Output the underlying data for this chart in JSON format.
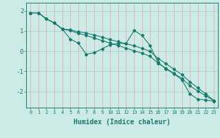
{
  "xlabel": "Humidex (Indice chaleur)",
  "background_color": "#cceae6",
  "vgrid_color": "#e8a0a0",
  "hgrid_color": "#a8d0cc",
  "line_color": "#1a7a6e",
  "x_data": [
    0,
    1,
    2,
    3,
    4,
    5,
    6,
    7,
    8,
    9,
    10,
    11,
    12,
    13,
    14,
    15,
    16,
    17,
    18,
    19,
    20,
    21,
    22,
    23
  ],
  "series1": [
    1.9,
    1.9,
    1.6,
    1.4,
    1.1,
    0.6,
    0.4,
    -0.15,
    -0.08,
    0.12,
    0.32,
    0.38,
    0.38,
    1.02,
    0.78,
    0.28,
    -0.55,
    -0.88,
    -1.12,
    -1.42,
    -2.12,
    -2.38,
    -2.42,
    -2.48
  ],
  "series2": [
    1.9,
    1.9,
    1.6,
    1.4,
    1.1,
    1.02,
    0.88,
    0.78,
    0.65,
    0.52,
    0.4,
    0.28,
    0.15,
    0.02,
    -0.1,
    -0.25,
    -0.6,
    -0.85,
    -1.1,
    -1.35,
    -1.72,
    -1.98,
    -2.22,
    -2.45
  ],
  "series3": [
    1.9,
    1.9,
    1.6,
    1.4,
    1.1,
    1.06,
    0.96,
    0.9,
    0.8,
    0.7,
    0.57,
    0.47,
    0.37,
    0.27,
    0.14,
    0.0,
    -0.36,
    -0.62,
    -0.9,
    -1.16,
    -1.52,
    -1.82,
    -2.12,
    -2.45
  ],
  "ylim": [
    -2.8,
    2.4
  ],
  "xlim": [
    -0.5,
    23.5
  ],
  "yticks": [
    -2,
    -1,
    0,
    1,
    2
  ],
  "xtick_fontsize": 5.0,
  "ytick_fontsize": 6.5,
  "xlabel_fontsize": 7.0
}
